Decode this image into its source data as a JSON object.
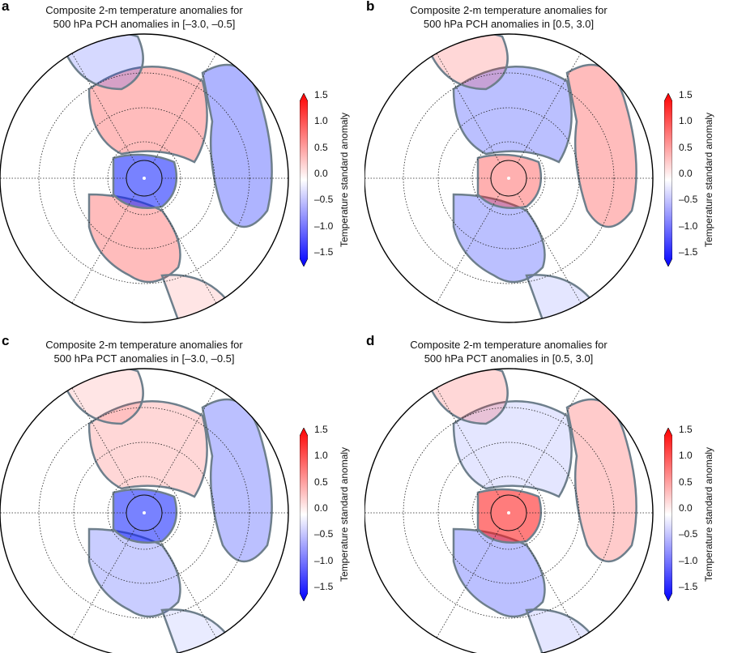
{
  "figure": {
    "panels": [
      {
        "label": "a",
        "title_line1": "Composite 2-m temperature anomalies for",
        "title_line2": "500 hPa PCH anomalies in [–3.0, –0.5]",
        "pattern": "pch_neg"
      },
      {
        "label": "b",
        "title_line1": "Composite 2-m temperature anomalies for",
        "title_line2": "500 hPa PCH anomalies in [0.5, 3.0]",
        "pattern": "pch_pos"
      },
      {
        "label": "c",
        "title_line1": "Composite 2-m temperature anomalies for",
        "title_line2": "500 hPa PCT anomalies in [–3.0, –0.5]",
        "pattern": "pct_neg"
      },
      {
        "label": "d",
        "title_line1": "Composite 2-m temperature anomalies for",
        "title_line2": "500 hPa PCT anomalies in [0.5, 3.0]",
        "pattern": "pct_pos"
      }
    ],
    "colorbar": {
      "label": "Temperature standard anomaly",
      "ticks": [
        "1.5",
        "1.0",
        "0.5",
        "0.0",
        "–0.5",
        "–1.0",
        "–1.5"
      ],
      "range": [
        -1.5,
        1.5
      ],
      "colors": {
        "low": "#0a1cff",
        "mid": "#ffffff",
        "high": "#ff1010"
      }
    },
    "land_outline_color": "#6e7f8c"
  }
}
